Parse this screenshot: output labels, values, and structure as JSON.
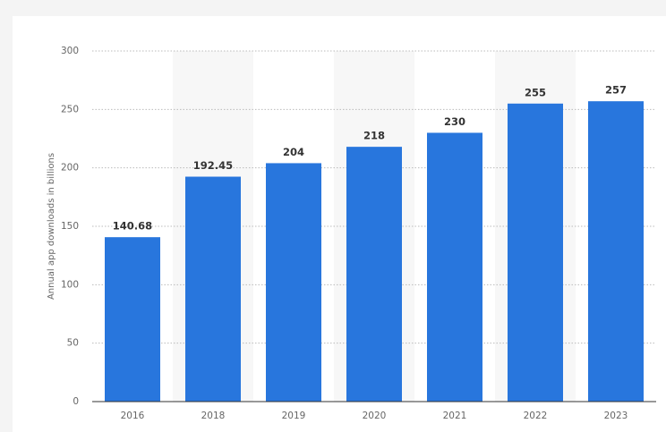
{
  "chart_data": {
    "type": "bar",
    "y_label": "Annual app downloads in billions",
    "categories": [
      "2016",
      "2018",
      "2019",
      "2020",
      "2021",
      "2022",
      "2023"
    ],
    "values": [
      140.68,
      192.45,
      204,
      218,
      230,
      255,
      257
    ],
    "color": "#2876dd",
    "ylim": [
      0,
      300
    ],
    "yticks": [
      0,
      50,
      100,
      150,
      200,
      250,
      300
    ],
    "grid": true
  }
}
